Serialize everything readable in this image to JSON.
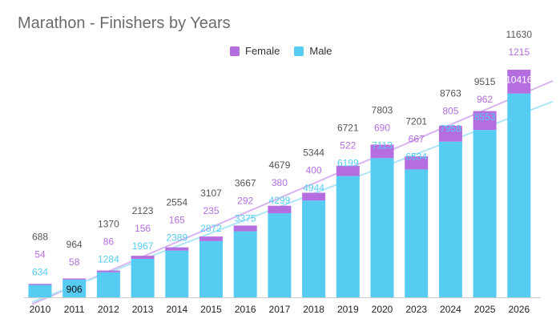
{
  "chart_data": {
    "type": "bar",
    "stacked": true,
    "title": "Marathon - Finishers by Years",
    "categories": [
      "2010",
      "2011",
      "2012",
      "2013",
      "2014",
      "2015",
      "2016",
      "2017",
      "2018",
      "2019",
      "2020",
      "2023",
      "2024",
      "2025",
      "2026"
    ],
    "series": [
      {
        "name": "Male",
        "color": "#56ccf2",
        "values": [
          634,
          906,
          1284,
          1967,
          2389,
          2872,
          3375,
          4299,
          4944,
          6199,
          7113,
          6534,
          7958,
          8553,
          10416
        ]
      },
      {
        "name": "Female",
        "color": "#b46ee0",
        "values": [
          54,
          58,
          86,
          156,
          165,
          235,
          292,
          380,
          400,
          522,
          690,
          667,
          805,
          962,
          1215
        ]
      }
    ],
    "totals": [
      688,
      964,
      1370,
      2123,
      2554,
      3107,
      3667,
      4679,
      5344,
      6721,
      7803,
      7201,
      8763,
      9515,
      11630
    ],
    "ylim": [
      0,
      11630
    ],
    "legend_position": "top-center",
    "legend": [
      "Female",
      "Male"
    ],
    "trendlines": [
      {
        "series": "Female",
        "color": "#d8b4f0"
      },
      {
        "series": "Male",
        "color": "#aee6f8"
      }
    ],
    "grid": false
  }
}
